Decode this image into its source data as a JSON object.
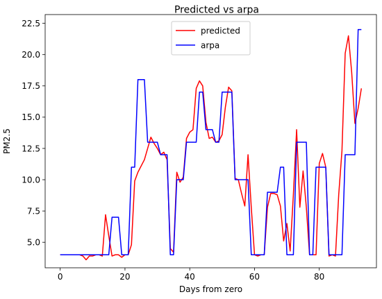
{
  "chart_data": {
    "type": "line",
    "title": "Predicted vs arpa",
    "xlabel": "Days from zero",
    "ylabel": "PM2.5",
    "xlim": [
      -4.65,
      97.65
    ],
    "ylim": [
      2.96,
      23.2
    ],
    "xticks": [
      0,
      20,
      40,
      60,
      80
    ],
    "yticks": [
      5.0,
      7.5,
      10.0,
      12.5,
      15.0,
      17.5,
      20.0,
      22.5
    ],
    "ytick_labels": [
      "5.0",
      "7.5",
      "10.0",
      "12.5",
      "15.0",
      "17.5",
      "20.0",
      "22.5"
    ],
    "legend_position": "upper center",
    "grid": false,
    "x": [
      0,
      1,
      2,
      3,
      4,
      5,
      6,
      7,
      8,
      9,
      10,
      11,
      12,
      13,
      14,
      15,
      16,
      17,
      18,
      19,
      20,
      21,
      22,
      23,
      24,
      25,
      26,
      27,
      28,
      29,
      30,
      31,
      32,
      33,
      34,
      35,
      36,
      37,
      38,
      39,
      40,
      41,
      42,
      43,
      44,
      45,
      46,
      47,
      48,
      49,
      50,
      51,
      52,
      53,
      54,
      55,
      56,
      57,
      58,
      59,
      60,
      61,
      62,
      63,
      64,
      65,
      66,
      67,
      68,
      69,
      70,
      71,
      72,
      73,
      74,
      75,
      76,
      77,
      78,
      79,
      80,
      81,
      82,
      83,
      84,
      85,
      86,
      87,
      88,
      89,
      90,
      91,
      92,
      93
    ],
    "series": [
      {
        "name": "predicted",
        "color": "#ff0000",
        "values": [
          4.0,
          4.0,
          4.0,
          4.0,
          4.0,
          4.0,
          4.0,
          3.9,
          3.6,
          3.9,
          3.9,
          4.0,
          4.0,
          3.9,
          7.2,
          5.5,
          3.9,
          4.0,
          4.0,
          3.8,
          4.0,
          4.0,
          4.8,
          9.9,
          10.6,
          11.1,
          11.6,
          12.5,
          13.4,
          12.9,
          12.5,
          12.0,
          12.2,
          11.6,
          4.5,
          4.2,
          10.6,
          9.8,
          10.2,
          13.3,
          13.8,
          14.0,
          17.3,
          17.9,
          17.5,
          14.6,
          13.3,
          13.4,
          13.0,
          13.1,
          13.6,
          15.8,
          17.4,
          17.1,
          10.1,
          10.0,
          8.9,
          7.9,
          12.0,
          7.8,
          4.0,
          3.9,
          4.0,
          4.0,
          7.8,
          8.9,
          8.9,
          8.8,
          7.9,
          5.1,
          6.5,
          4.3,
          8.8,
          14.0,
          7.8,
          10.7,
          7.8,
          4.0,
          4.0,
          4.0,
          11.3,
          12.1,
          11.0,
          3.9,
          4.0,
          3.9,
          8.8,
          12.3,
          20.1,
          21.5,
          18.6,
          14.5,
          15.7,
          17.3
        ]
      },
      {
        "name": "arpa",
        "color": "#0000ff",
        "values": [
          4.0,
          4.0,
          4.0,
          4.0,
          4.0,
          4.0,
          4.0,
          4.0,
          4.0,
          4.0,
          4.0,
          4.0,
          4.0,
          4.0,
          4.0,
          4.0,
          7.0,
          7.0,
          7.0,
          4.0,
          4.0,
          4.0,
          11.0,
          11.0,
          18.0,
          18.0,
          18.0,
          13.0,
          13.0,
          13.0,
          13.0,
          12.0,
          12.0,
          12.0,
          4.0,
          4.0,
          10.0,
          10.0,
          10.0,
          13.0,
          13.0,
          13.0,
          13.0,
          17.0,
          17.0,
          14.0,
          14.0,
          14.0,
          13.0,
          13.0,
          17.0,
          17.0,
          17.0,
          17.0,
          10.0,
          10.0,
          10.0,
          10.0,
          10.0,
          4.0,
          4.0,
          4.0,
          4.0,
          4.0,
          9.0,
          9.0,
          9.0,
          9.0,
          11.0,
          11.0,
          4.0,
          4.0,
          4.0,
          13.0,
          13.0,
          13.0,
          13.0,
          4.0,
          4.0,
          11.0,
          11.0,
          11.0,
          11.0,
          4.0,
          4.0,
          4.0,
          4.0,
          4.0,
          12.0,
          12.0,
          12.0,
          12.0,
          22.0,
          22.0
        ]
      }
    ]
  }
}
